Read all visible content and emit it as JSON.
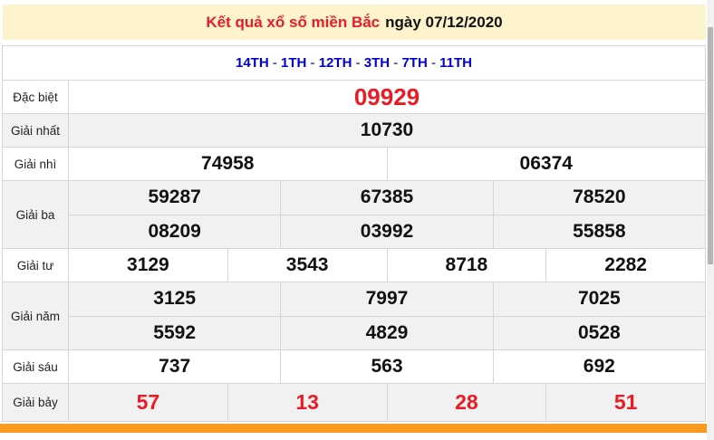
{
  "header": {
    "title": "Kết quả xổ số miền Bắc",
    "date_label": "ngày 07/12/2020"
  },
  "th_row": {
    "links": [
      "14TH",
      "1TH",
      "12TH",
      "3TH",
      "7TH",
      "11TH"
    ],
    "separator": " - "
  },
  "table": {
    "rows": [
      {
        "label": "Đặc biệt",
        "values": [
          "09929"
        ],
        "highlight": true
      },
      {
        "label": "Giải nhất",
        "values": [
          "10730"
        ]
      },
      {
        "label": "Giải nhì",
        "values": [
          "74958",
          "06374"
        ]
      },
      {
        "label": "Giải ba",
        "sub": [
          [
            "59287",
            "67385",
            "78520"
          ],
          [
            "08209",
            "03992",
            "55858"
          ]
        ]
      },
      {
        "label": "Giải tư",
        "values": [
          "3129",
          "3543",
          "8718",
          "2282"
        ]
      },
      {
        "label": "Giải năm",
        "sub": [
          [
            "3125",
            "7997",
            "7025"
          ],
          [
            "5592",
            "4829",
            "0528"
          ]
        ]
      },
      {
        "label": "Giải sáu",
        "values": [
          "737",
          "563",
          "692"
        ]
      },
      {
        "label": "Giải bảy",
        "values": [
          "57",
          "13",
          "28",
          "51"
        ],
        "highlight": true
      }
    ]
  },
  "colors": {
    "title_bar_bg": "#fdf3cd",
    "highlight_red": "#e81c24",
    "link_blue": "#0000cd",
    "row_alt_gray": "#f1f1f1",
    "border": "#dbd6cd",
    "bottom_bar_orange": "#f79a1f"
  }
}
